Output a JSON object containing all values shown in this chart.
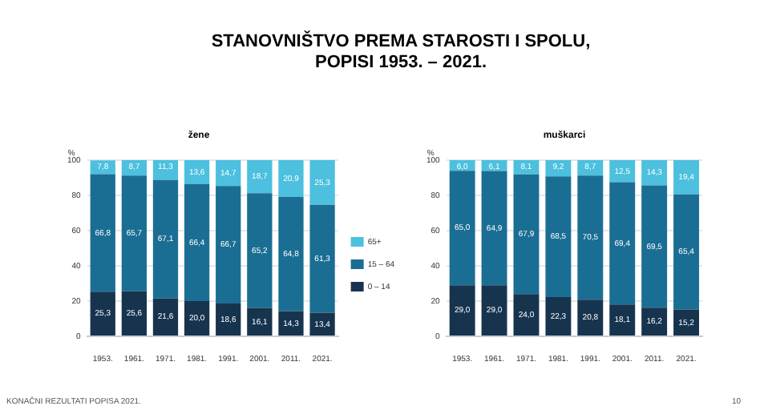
{
  "chart_data": [
    {
      "type": "bar",
      "title": "STANOVNIŠTVO PREMA STAROSTI I SPOLU,\nPOPISI 1953. – 2021.",
      "subtitle": "žene",
      "ylabel": "%",
      "categories": [
        "1953.",
        "1961.",
        "1971.",
        "1981.",
        "1991.",
        "2001.",
        "2011.",
        "2021."
      ],
      "stacked": true,
      "ylim": [
        0,
        100
      ],
      "yticks": [
        0,
        20,
        40,
        60,
        80,
        100
      ],
      "grid": "y",
      "legend": "right",
      "series": [
        {
          "name": "0 – 14",
          "color": "#17344f",
          "values": [
            25.3,
            25.6,
            21.6,
            20.0,
            18.6,
            16.1,
            14.3,
            13.4
          ],
          "value_labels": [
            "25,3",
            "25,6",
            "21,6",
            "20,0",
            "18,6",
            "16,1",
            "14,3",
            "13,4"
          ]
        },
        {
          "name": "15 – 64",
          "color": "#1b6e93",
          "values": [
            66.8,
            65.7,
            67.1,
            66.4,
            66.7,
            65.2,
            64.8,
            61.3
          ],
          "value_labels": [
            "66,8",
            "65,7",
            "67,1",
            "66,4",
            "66,7",
            "65,2",
            "64,8",
            "61,3"
          ]
        },
        {
          "name": "65+",
          "color": "#4cc0de",
          "values": [
            7.8,
            8.7,
            11.3,
            13.6,
            14.7,
            18.7,
            20.9,
            25.3
          ],
          "value_labels": [
            "7,8",
            "8,7",
            "11,3",
            "13,6",
            "14,7",
            "18,7",
            "20,9",
            "25,3"
          ]
        }
      ]
    },
    {
      "type": "bar",
      "subtitle": "muškarci",
      "ylabel": "%",
      "categories": [
        "1953.",
        "1961.",
        "1971.",
        "1981.",
        "1991.",
        "2001.",
        "2011.",
        "2021."
      ],
      "stacked": true,
      "ylim": [
        0,
        100
      ],
      "yticks": [
        0,
        20,
        40,
        60,
        80,
        100
      ],
      "grid": "y",
      "annotations": [
        "KONAČNI REZULTATI POPISA 2021.",
        "10"
      ],
      "series": [
        {
          "color": "#17344f",
          "values": [
            29.0,
            29.0,
            24.0,
            22.3,
            20.8,
            18.1,
            16.2,
            15.2
          ],
          "value_labels": [
            "29,0",
            "29,0",
            "24,0",
            "22,3",
            "20,8",
            "18,1",
            "16,2",
            "15,2"
          ]
        },
        {
          "color": "#1b6e93",
          "values": [
            65.0,
            64.9,
            67.9,
            68.5,
            70.5,
            69.4,
            69.5,
            65.4
          ],
          "value_labels": [
            "65,0",
            "64,9",
            "67,9",
            "68,5",
            "70,5",
            "69,4",
            "69,5",
            "65,4"
          ]
        },
        {
          "color": "#4cc0de",
          "values": [
            6.0,
            6.1,
            8.1,
            9.2,
            8.7,
            12.5,
            14.3,
            19.4
          ],
          "value_labels": [
            "6,0",
            "6,1",
            "8,1",
            "9,2",
            "8,7",
            "12,5",
            "14,3",
            "19,4"
          ]
        }
      ]
    }
  ]
}
